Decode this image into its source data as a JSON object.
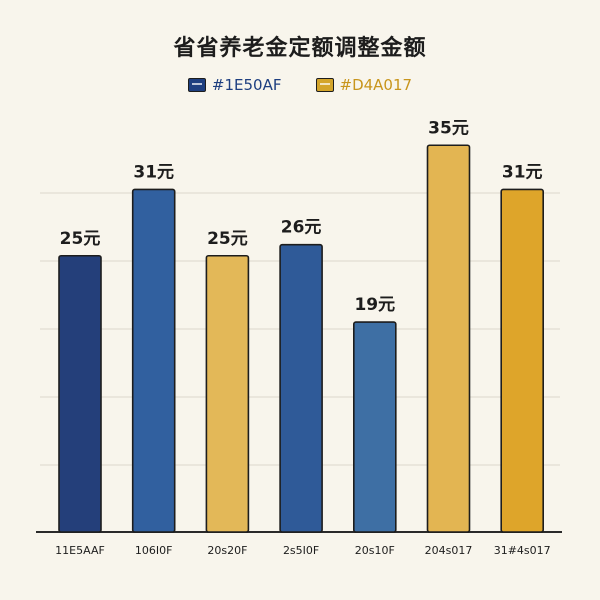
{
  "chart_data": {
    "type": "bar",
    "title": "省省养老金定额调整金额",
    "legend": [
      {
        "label": "#1E50AF",
        "color": "#1e3f80"
      },
      {
        "label": "#D4A017",
        "color": "#d4a52b"
      }
    ],
    "categories": [
      "11E5AAF",
      "106I0F",
      "20s20F",
      "2s5I0F",
      "20s10F",
      "204s017",
      "31#4s017"
    ],
    "values": [
      25,
      31,
      25,
      26,
      19,
      35,
      31
    ],
    "value_labels": [
      "25元",
      "31元",
      "25元",
      "26元",
      "19元",
      "35元",
      "31元"
    ],
    "bar_colors": [
      "#243f7a",
      "#31609f",
      "#e3b858",
      "#2f5a98",
      "#3e6fa4",
      "#e3b552",
      "#dea52a"
    ],
    "xlabel": "",
    "ylabel": "",
    "grid": true,
    "legend_position": "top"
  }
}
